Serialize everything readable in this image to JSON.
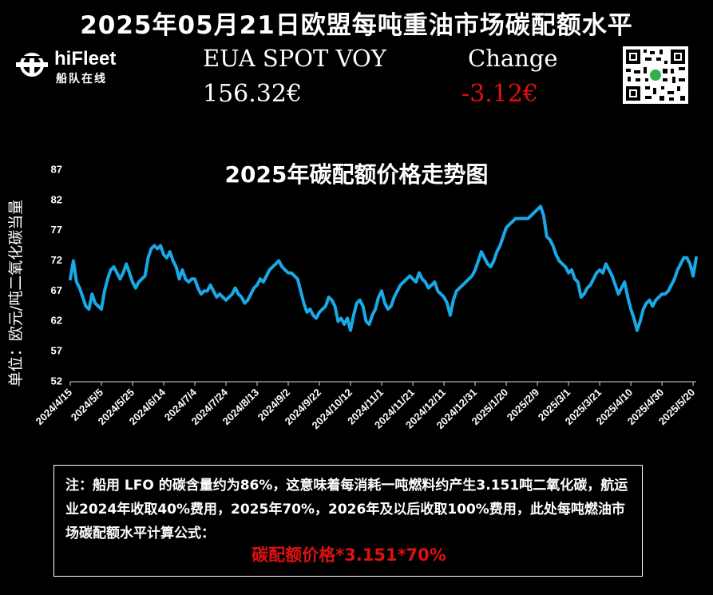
{
  "header": {
    "title": "2025年05月21日欧盟每吨重油市场碳配额水平",
    "logo_name": "hiFleet",
    "logo_sub": "船队在线",
    "eua_label": "EUA SPOT VOY",
    "eua_value": "156.32€",
    "change_label": "Change",
    "change_value": "-3.12€"
  },
  "colors": {
    "line": "#19a9e6",
    "negative": "#e01010",
    "background": "#000000"
  },
  "chart_data": {
    "type": "line",
    "title": "2025年碳配额价格走势图",
    "ylabel": "单位：欧元/吨二氧化碳当量",
    "xlabel": "",
    "ylim": [
      52,
      87
    ],
    "yticks": [
      52,
      57,
      62,
      67,
      72,
      77,
      82,
      87
    ],
    "grid": false,
    "x_tick_labels": [
      "2024/4/15",
      "2024/5/5",
      "2024/5/25",
      "2024/6/14",
      "2024/7/4",
      "2024/7/24",
      "2024/8/13",
      "2024/9/2",
      "2024/9/22",
      "2024/10/12",
      "2024/11/1",
      "2024/11/21",
      "2024/12/11",
      "2024/12/31",
      "2025/1/20",
      "2025/2/9",
      "2025/3/1",
      "2025/3/21",
      "2025/4/10",
      "2025/4/30",
      "2025/5/20"
    ],
    "series": [
      {
        "values": [
          [
            0,
            69.0
          ],
          [
            2,
            72.0
          ],
          [
            4,
            68.5
          ],
          [
            6,
            67.5
          ],
          [
            8,
            66.0
          ],
          [
            10,
            64.5
          ],
          [
            12,
            64.0
          ],
          [
            14,
            66.5
          ],
          [
            16,
            65.0
          ],
          [
            18,
            64.5
          ],
          [
            20,
            64.0
          ],
          [
            22,
            67.0
          ],
          [
            24,
            69.0
          ],
          [
            26,
            70.5
          ],
          [
            28,
            71.0
          ],
          [
            30,
            70.0
          ],
          [
            32,
            69.0
          ],
          [
            34,
            70.0
          ],
          [
            36,
            71.5
          ],
          [
            38,
            70.0
          ],
          [
            40,
            68.5
          ],
          [
            42,
            67.5
          ],
          [
            44,
            68.5
          ],
          [
            46,
            69.0
          ],
          [
            48,
            69.5
          ],
          [
            50,
            72.5
          ],
          [
            52,
            74.0
          ],
          [
            54,
            74.5
          ],
          [
            56,
            74.0
          ],
          [
            58,
            74.5
          ],
          [
            60,
            73.0
          ],
          [
            62,
            72.5
          ],
          [
            64,
            73.5
          ],
          [
            66,
            72.0
          ],
          [
            68,
            71.0
          ],
          [
            70,
            69.0
          ],
          [
            72,
            70.5
          ],
          [
            74,
            69.0
          ],
          [
            76,
            68.5
          ],
          [
            78,
            69.0
          ],
          [
            80,
            69.0
          ],
          [
            82,
            67.5
          ],
          [
            84,
            66.5
          ],
          [
            86,
            67.0
          ],
          [
            88,
            67.0
          ],
          [
            90,
            68.0
          ],
          [
            92,
            67.0
          ],
          [
            94,
            66.0
          ],
          [
            96,
            66.5
          ],
          [
            98,
            66.0
          ],
          [
            100,
            65.5
          ],
          [
            102,
            66.0
          ],
          [
            104,
            66.5
          ],
          [
            106,
            67.5
          ],
          [
            108,
            66.5
          ],
          [
            110,
            66.0
          ],
          [
            112,
            65.0
          ],
          [
            114,
            65.5
          ],
          [
            116,
            66.5
          ],
          [
            118,
            67.5
          ],
          [
            120,
            68.0
          ],
          [
            122,
            69.0
          ],
          [
            124,
            68.5
          ],
          [
            126,
            69.5
          ],
          [
            128,
            70.5
          ],
          [
            130,
            71.0
          ],
          [
            132,
            71.5
          ],
          [
            134,
            72.0
          ],
          [
            136,
            71.0
          ],
          [
            138,
            70.5
          ],
          [
            140,
            70.0
          ],
          [
            142,
            70.0
          ],
          [
            144,
            69.5
          ],
          [
            146,
            69.0
          ],
          [
            148,
            67.0
          ],
          [
            150,
            65.0
          ],
          [
            152,
            63.5
          ],
          [
            154,
            64.0
          ],
          [
            156,
            63.0
          ],
          [
            158,
            62.5
          ],
          [
            160,
            63.5
          ],
          [
            162,
            64.0
          ],
          [
            164,
            64.5
          ],
          [
            166,
            66.0
          ],
          [
            168,
            65.5
          ],
          [
            170,
            64.5
          ],
          [
            172,
            62.0
          ],
          [
            174,
            62.5
          ],
          [
            176,
            61.5
          ],
          [
            178,
            62.5
          ],
          [
            180,
            60.5
          ],
          [
            182,
            63.0
          ],
          [
            184,
            65.0
          ],
          [
            186,
            65.5
          ],
          [
            188,
            64.5
          ],
          [
            190,
            62.0
          ],
          [
            192,
            61.5
          ],
          [
            194,
            63.0
          ],
          [
            196,
            64.0
          ],
          [
            198,
            66.0
          ],
          [
            200,
            67.0
          ],
          [
            202,
            65.0
          ],
          [
            204,
            64.0
          ],
          [
            206,
            64.5
          ],
          [
            208,
            66.0
          ],
          [
            210,
            67.0
          ],
          [
            212,
            68.0
          ],
          [
            214,
            68.5
          ],
          [
            216,
            69.0
          ],
          [
            218,
            69.5
          ],
          [
            220,
            69.0
          ],
          [
            222,
            68.5
          ],
          [
            224,
            70.0
          ],
          [
            226,
            69.0
          ],
          [
            228,
            68.5
          ],
          [
            230,
            67.5
          ],
          [
            232,
            68.0
          ],
          [
            234,
            68.5
          ],
          [
            236,
            67.0
          ],
          [
            238,
            66.5
          ],
          [
            240,
            66.0
          ],
          [
            242,
            65.0
          ],
          [
            244,
            63.0
          ],
          [
            246,
            65.5
          ],
          [
            248,
            67.0
          ],
          [
            250,
            67.5
          ],
          [
            252,
            68.0
          ],
          [
            254,
            68.5
          ],
          [
            256,
            69.0
          ],
          [
            258,
            69.5
          ],
          [
            260,
            70.5
          ],
          [
            262,
            72.0
          ],
          [
            264,
            73.5
          ],
          [
            266,
            72.5
          ],
          [
            268,
            71.5
          ],
          [
            270,
            71.0
          ],
          [
            272,
            72.0
          ],
          [
            274,
            73.5
          ],
          [
            276,
            74.5
          ],
          [
            278,
            76.0
          ],
          [
            280,
            77.5
          ],
          [
            282,
            78.0
          ],
          [
            284,
            78.5
          ],
          [
            286,
            79.0
          ],
          [
            288,
            79.0
          ],
          [
            290,
            79.0
          ],
          [
            292,
            79.0
          ],
          [
            294,
            79.0
          ],
          [
            296,
            79.5
          ],
          [
            298,
            80.0
          ],
          [
            300,
            80.5
          ],
          [
            302,
            81.0
          ],
          [
            304,
            79.5
          ],
          [
            306,
            76.0
          ],
          [
            308,
            75.5
          ],
          [
            310,
            74.5
          ],
          [
            312,
            73.0
          ],
          [
            314,
            72.0
          ],
          [
            316,
            71.5
          ],
          [
            318,
            71.0
          ],
          [
            320,
            70.0
          ],
          [
            322,
            70.5
          ],
          [
            324,
            69.0
          ],
          [
            326,
            68.5
          ],
          [
            328,
            66.0
          ],
          [
            330,
            66.5
          ],
          [
            332,
            67.5
          ],
          [
            334,
            68.0
          ],
          [
            336,
            69.0
          ],
          [
            338,
            70.0
          ],
          [
            340,
            70.5
          ],
          [
            342,
            70.0
          ],
          [
            344,
            71.5
          ],
          [
            346,
            70.5
          ],
          [
            348,
            69.5
          ],
          [
            350,
            68.0
          ],
          [
            352,
            66.5
          ],
          [
            354,
            67.5
          ],
          [
            356,
            68.5
          ],
          [
            358,
            66.0
          ],
          [
            360,
            64.0
          ],
          [
            362,
            62.5
          ],
          [
            364,
            60.5
          ],
          [
            366,
            62.0
          ],
          [
            368,
            64.0
          ],
          [
            370,
            65.0
          ],
          [
            372,
            65.5
          ],
          [
            374,
            64.5
          ],
          [
            376,
            65.5
          ],
          [
            378,
            66.0
          ],
          [
            380,
            66.5
          ],
          [
            382,
            66.5
          ],
          [
            384,
            67.0
          ],
          [
            386,
            68.0
          ],
          [
            388,
            69.0
          ],
          [
            390,
            70.5
          ],
          [
            392,
            71.5
          ],
          [
            394,
            72.5
          ],
          [
            396,
            72.5
          ],
          [
            398,
            71.5
          ],
          [
            400,
            69.5
          ],
          [
            402,
            72.5
          ]
        ]
      }
    ]
  },
  "note": {
    "text": "注：船用 LFO 的碳含量约为86%，这意味着每消耗一吨燃料约产生3.151吨二氧化碳，航运业2024年收取40%费用，2025年70%，2026年及以后收取100%费用，此处每吨燃油市场碳配额水平计算公式：",
    "formula": "碳配额价格*3.151*70%"
  }
}
